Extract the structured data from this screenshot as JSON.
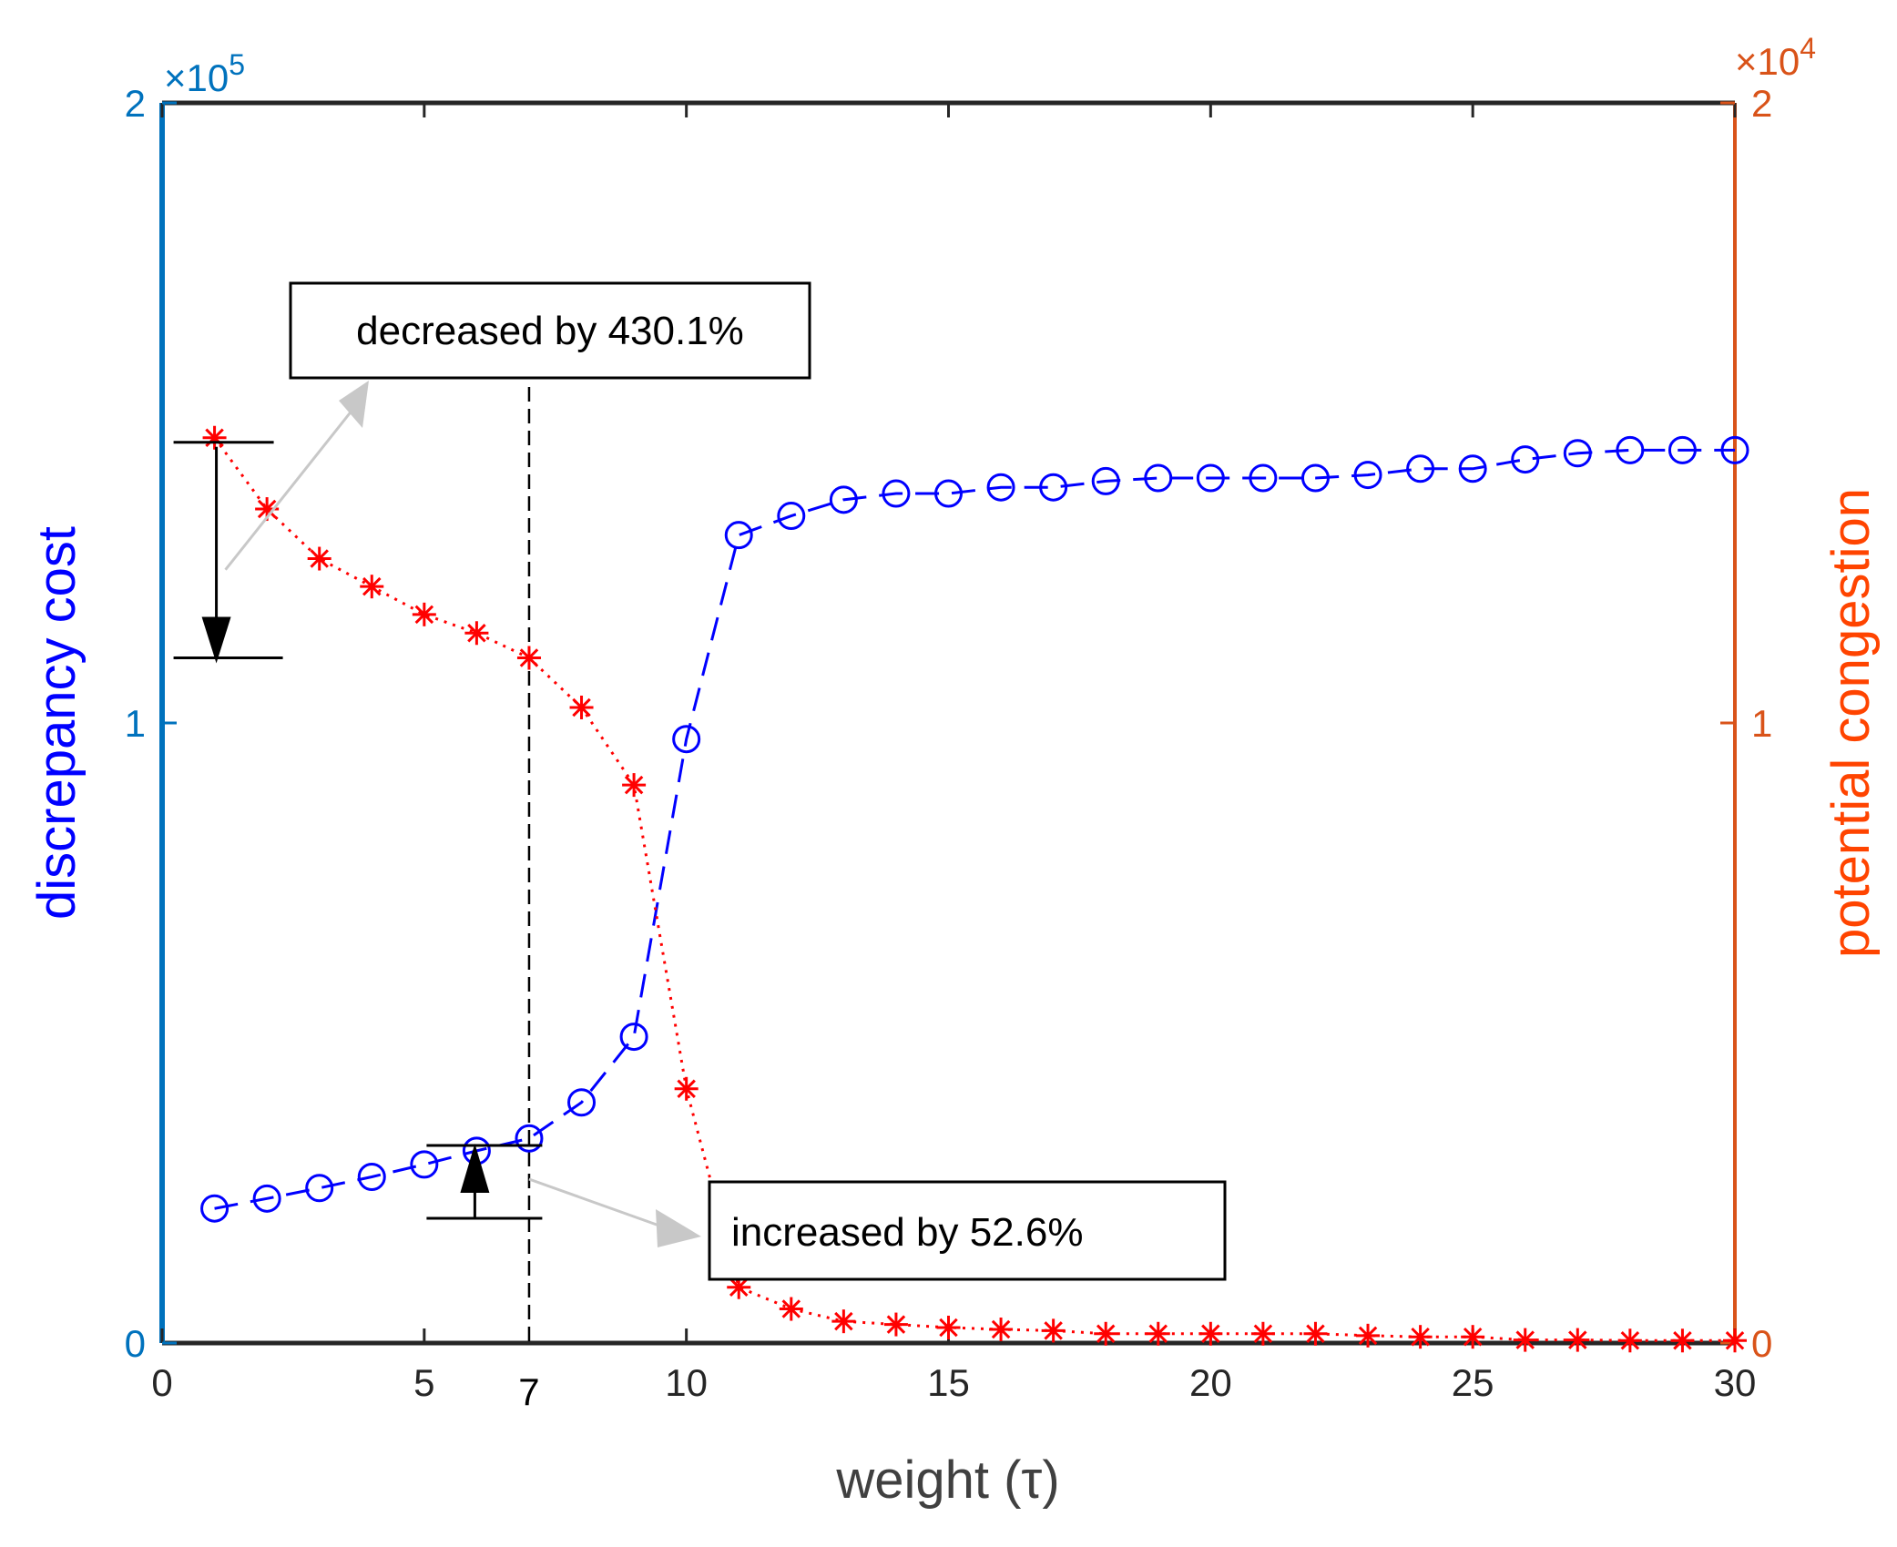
{
  "chart_data": {
    "type": "line",
    "xlabel": "weight (τ)",
    "ylabel_left": "discrepancy cost",
    "ylabel_right": "potential congestion",
    "left_multiplier": "×10",
    "left_exponent": "5",
    "right_multiplier": "×10",
    "right_exponent": "4",
    "xlim": [
      0,
      30
    ],
    "ylim_left": [
      0,
      2
    ],
    "ylim_right": [
      0,
      2
    ],
    "xticks": [
      "0",
      "5",
      "10",
      "15",
      "20",
      "25",
      "30"
    ],
    "xticks_values": [
      0,
      5,
      10,
      15,
      20,
      25,
      30
    ],
    "extra_xtick": "7",
    "extra_xtick_value": 7,
    "yticks_left": [
      "0",
      "1",
      "2"
    ],
    "yticks_right": [
      "0",
      "1",
      "2"
    ],
    "grid": false,
    "colors": {
      "left_axis": "#0072BD",
      "right_axis": "#D95319",
      "series_left": "#0000FF",
      "series_right": "#FF0000"
    },
    "series": [
      {
        "axis": "left",
        "marker": "circle",
        "line": "dashed",
        "x": [
          1,
          2,
          3,
          4,
          5,
          6,
          7,
          8,
          9,
          10,
          11,
          12,
          13,
          14,
          15,
          16,
          17,
          18,
          19,
          20,
          21,
          22,
          23,
          24,
          25,
          26,
          27,
          28,
          29,
          30
        ],
        "values": [
          0.217,
          0.233,
          0.25,
          0.268,
          0.288,
          0.31,
          0.33,
          0.388,
          0.494,
          0.974,
          1.303,
          1.334,
          1.36,
          1.37,
          1.37,
          1.38,
          1.38,
          1.39,
          1.395,
          1.395,
          1.395,
          1.395,
          1.4,
          1.41,
          1.41,
          1.425,
          1.435,
          1.44,
          1.44,
          1.44
        ]
      },
      {
        "axis": "right",
        "marker": "asterisk",
        "line": "dotted",
        "x": [
          1,
          2,
          3,
          4,
          5,
          6,
          7,
          8,
          9,
          10,
          11,
          12,
          13,
          14,
          15,
          16,
          17,
          18,
          19,
          20,
          21,
          22,
          23,
          24,
          25,
          26,
          27,
          28,
          29,
          30
        ],
        "values": [
          1.46,
          1.345,
          1.265,
          1.22,
          1.175,
          1.145,
          1.105,
          1.025,
          0.9,
          0.41,
          0.09,
          0.055,
          0.035,
          0.03,
          0.025,
          0.022,
          0.02,
          0.015,
          0.015,
          0.015,
          0.015,
          0.015,
          0.012,
          0.01,
          0.01,
          0.005,
          0.005,
          0.004,
          0.004,
          0.004
        ]
      }
    ],
    "annotations": [
      {
        "text": "decreased by 430.1%"
      },
      {
        "text": "increased by 52.6%"
      }
    ]
  }
}
